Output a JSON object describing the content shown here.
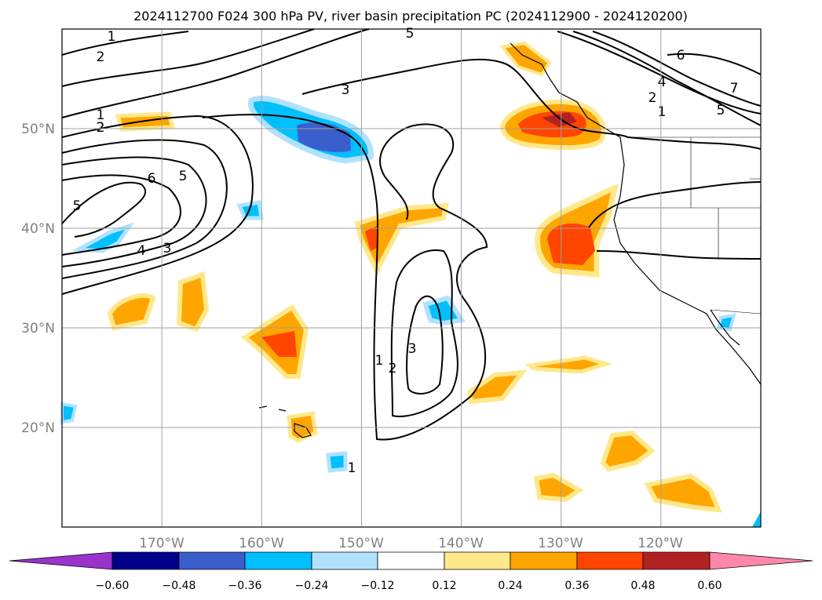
{
  "title": "2024112700 F024 300 hPa PV, river basin precipitation PC (2024112900 - 2024120200)",
  "map": {
    "lon_range": [
      -180,
      -110
    ],
    "lat_range": [
      10,
      60
    ],
    "lon_ticks": [
      "170°W",
      "160°W",
      "150°W",
      "140°W",
      "130°W",
      "120°W"
    ],
    "lat_ticks": [
      "20°N",
      "30°N",
      "40°N",
      "50°N"
    ],
    "lon_tick_values": [
      -170,
      -160,
      -150,
      -140,
      -130,
      -120
    ],
    "lat_tick_values": [
      20,
      30,
      40,
      50
    ],
    "gridlines": true
  },
  "contour_labels": [
    "1",
    "2",
    "5",
    "6",
    "2",
    "3",
    "1",
    "2",
    "6",
    "5",
    "4",
    "3",
    "5",
    "4",
    "2",
    "1",
    "5",
    "7",
    "1",
    "2",
    "3",
    "1"
  ],
  "colorbar": {
    "tick_labels": [
      "−0.60",
      "−0.48",
      "−0.36",
      "−0.24",
      "−0.12",
      "0.12",
      "0.24",
      "0.36",
      "0.48",
      "0.60"
    ],
    "colors": [
      "#9933cc",
      "#00008b",
      "#3a5fcd",
      "#00bfff",
      "#b0e2ff",
      "#ffffff",
      "#ffe88a",
      "#ffa500",
      "#ff4500",
      "#b22222",
      "#ff88aa"
    ],
    "extend": "both"
  }
}
